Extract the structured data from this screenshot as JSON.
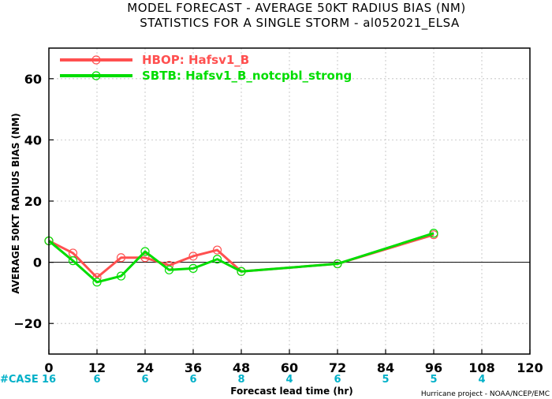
{
  "chart_data": {
    "type": "line",
    "title": "MODEL FORECAST - AVERAGE 50KT RADIUS BIAS (NM)",
    "subtitle": "STATISTICS FOR A SINGLE STORM - al052021_ELSA",
    "xlabel": "Forecast lead time (hr)",
    "ylabel": "AVERAGE 50KT RADIUS BIAS (NM)",
    "xlim": [
      0,
      120
    ],
    "ylim": [
      -30,
      70
    ],
    "x_ticks": [
      0,
      12,
      24,
      36,
      48,
      60,
      72,
      84,
      96,
      108,
      120
    ],
    "x_tick_labels": [
      "0",
      "12",
      "24",
      "36",
      "48",
      "60",
      "72",
      "84",
      "96",
      "108",
      "120"
    ],
    "y_ticks": [
      -20,
      0,
      20,
      40,
      60
    ],
    "y_tick_labels": [
      "−20",
      "0",
      "20",
      "40",
      "60"
    ],
    "grid": true,
    "zero_line": true,
    "legend_position": "top-left",
    "series": [
      {
        "name": "HBOP: Hafsv1_B",
        "color": "#ff5050",
        "x": [
          0,
          6,
          12,
          18,
          24,
          30,
          36,
          42,
          48,
          72,
          96
        ],
        "y": [
          7,
          3,
          -5,
          1.5,
          1.5,
          -1,
          2,
          4,
          -3,
          -0.5,
          9
        ]
      },
      {
        "name": "SBTB: Hafsv1_B_notcpbl_strong",
        "color": "#00dd00",
        "x": [
          0,
          6,
          12,
          18,
          24,
          30,
          36,
          42,
          48,
          72,
          96
        ],
        "y": [
          7,
          0.5,
          -6.5,
          -4.5,
          3.5,
          -2.5,
          -2,
          1,
          -3,
          -0.5,
          9.5
        ]
      }
    ],
    "case_label": "#CASE",
    "case_counts": [
      {
        "x": 0,
        "label": "16"
      },
      {
        "x": 12,
        "label": "6"
      },
      {
        "x": 24,
        "label": "6"
      },
      {
        "x": 36,
        "label": "6"
      },
      {
        "x": 48,
        "label": "8"
      },
      {
        "x": 60,
        "label": "4"
      },
      {
        "x": 72,
        "label": "6"
      },
      {
        "x": 84,
        "label": "5"
      },
      {
        "x": 96,
        "label": "5"
      },
      {
        "x": 108,
        "label": "4"
      }
    ],
    "case_color": "#00b0c8",
    "credit": "Hurricane project - NOAA/NCEP/EMC"
  }
}
